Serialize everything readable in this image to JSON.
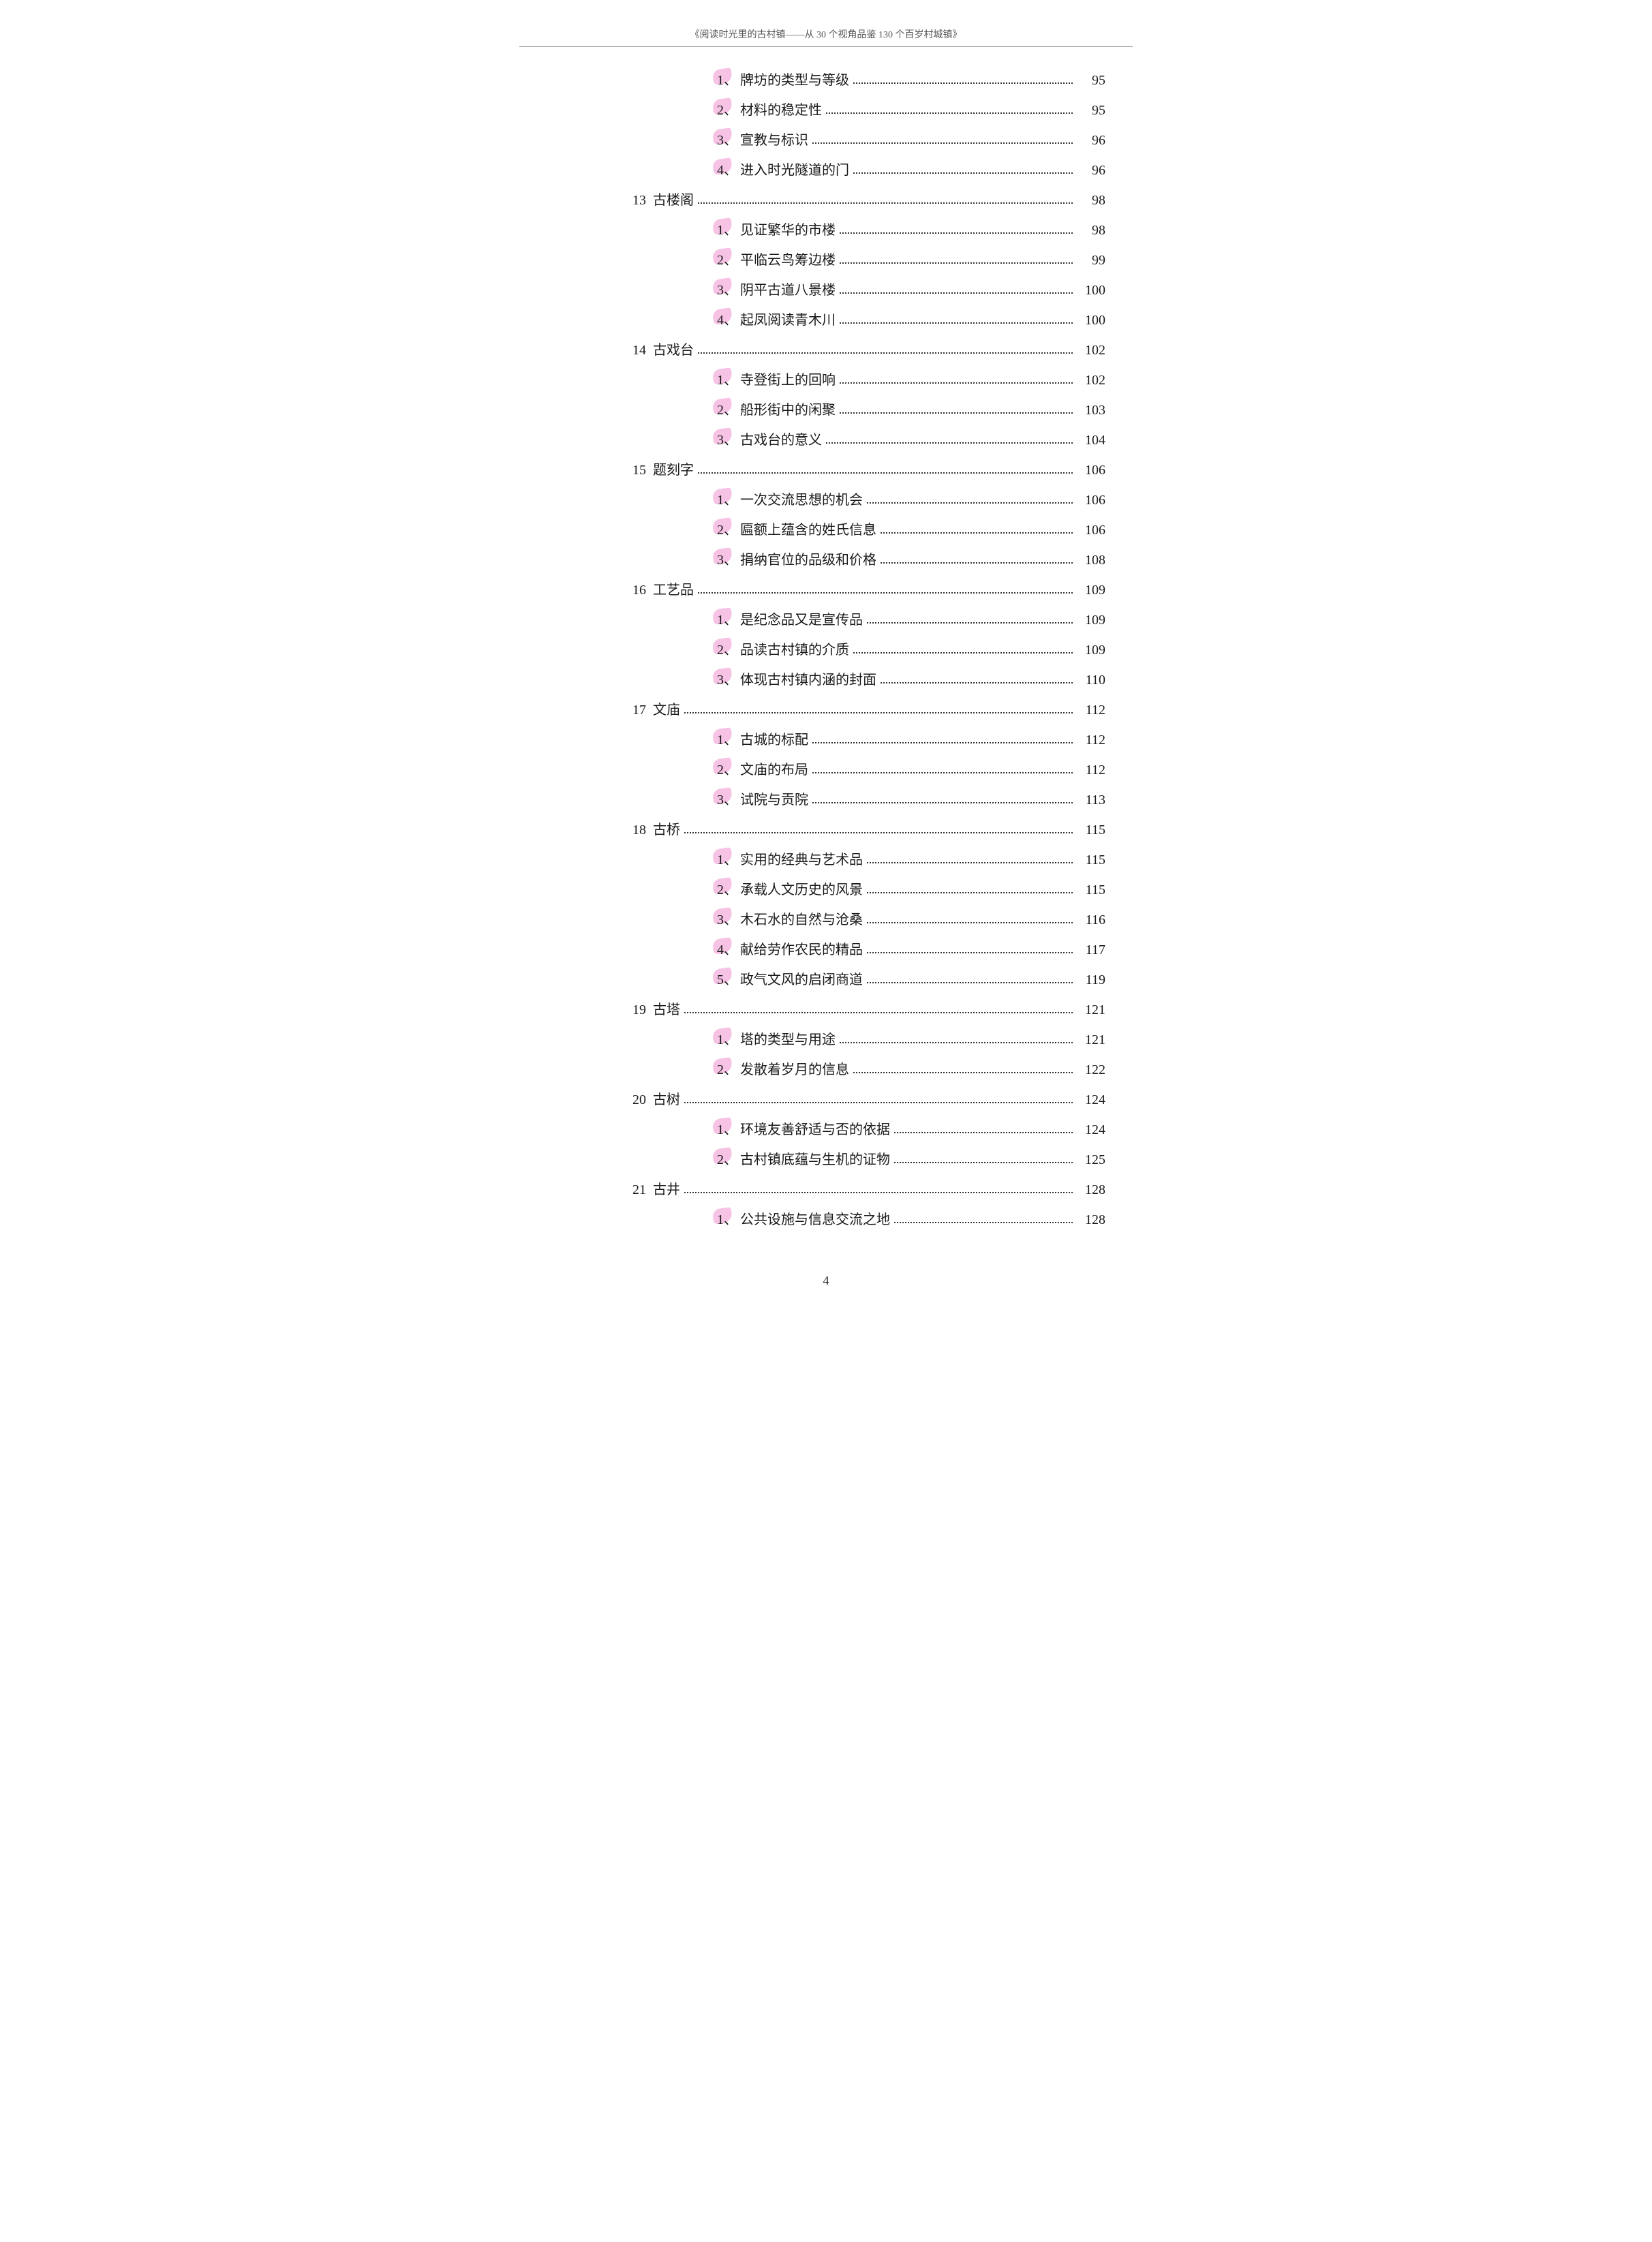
{
  "header": "《阅读时光里的古村镇——从 30 个视角品鉴 130 个百岁村城镇》",
  "page_number": "4",
  "font": {
    "body_size_pt": 15,
    "family": "SimSun"
  },
  "colors": {
    "text": "#1a1a1a",
    "dots": "#333333",
    "highlight": "#e754b4",
    "background": "#ffffff"
  },
  "toc": [
    {
      "type": "sub",
      "n": "1",
      "title": "牌坊的类型与等级",
      "pg": "95"
    },
    {
      "type": "sub",
      "n": "2",
      "title": "材料的稳定性",
      "pg": "95"
    },
    {
      "type": "sub",
      "n": "3",
      "title": "宣教与标识",
      "pg": "96"
    },
    {
      "type": "sub",
      "n": "4",
      "title": "进入时光隧道的门",
      "pg": "96"
    },
    {
      "type": "sec",
      "n": "13",
      "title": "古楼阁",
      "pg": "98"
    },
    {
      "type": "sub",
      "n": "1",
      "title": "见证繁华的市楼",
      "pg": "98"
    },
    {
      "type": "sub",
      "n": "2",
      "title": "平临云鸟筹边楼",
      "pg": "99"
    },
    {
      "type": "sub",
      "n": "3",
      "title": "阴平古道八景楼",
      "pg": "100"
    },
    {
      "type": "sub",
      "n": "4",
      "title": "起凤阅读青木川",
      "pg": "100"
    },
    {
      "type": "sec",
      "n": "14",
      "title": "古戏台",
      "pg": "102"
    },
    {
      "type": "sub",
      "n": "1",
      "title": "寺登街上的回响",
      "pg": "102"
    },
    {
      "type": "sub",
      "n": "2",
      "title": "船形街中的闲聚",
      "pg": "103"
    },
    {
      "type": "sub",
      "n": "3",
      "title": "古戏台的意义",
      "pg": "104"
    },
    {
      "type": "sec",
      "n": "15",
      "title": "题刻字",
      "pg": "106"
    },
    {
      "type": "sub",
      "n": "1",
      "title": "一次交流思想的机会",
      "pg": "106"
    },
    {
      "type": "sub",
      "n": "2",
      "title": "匾额上蕴含的姓氏信息",
      "pg": "106"
    },
    {
      "type": "sub",
      "n": "3",
      "title": "捐纳官位的品级和价格",
      "pg": "108"
    },
    {
      "type": "sec",
      "n": "16",
      "title": "工艺品",
      "pg": "109"
    },
    {
      "type": "sub",
      "n": "1",
      "title": "是纪念品又是宣传品",
      "pg": "109"
    },
    {
      "type": "sub",
      "n": "2",
      "title": "品读古村镇的介质",
      "pg": "109"
    },
    {
      "type": "sub",
      "n": "3",
      "title": "体现古村镇内涵的封面",
      "pg": "110"
    },
    {
      "type": "sec",
      "n": "17",
      "title": "文庙",
      "pg": "112"
    },
    {
      "type": "sub",
      "n": "1",
      "title": "古城的标配",
      "pg": "112"
    },
    {
      "type": "sub",
      "n": "2",
      "title": "文庙的布局",
      "pg": "112"
    },
    {
      "type": "sub",
      "n": "3",
      "title": "试院与贡院",
      "pg": "113"
    },
    {
      "type": "sec",
      "n": "18",
      "title": "古桥",
      "pg": "115"
    },
    {
      "type": "sub",
      "n": "1",
      "title": "实用的经典与艺术品",
      "pg": "115"
    },
    {
      "type": "sub",
      "n": "2",
      "title": "承载人文历史的风景",
      "pg": "115"
    },
    {
      "type": "sub",
      "n": "3",
      "title": "木石水的自然与沧桑",
      "pg": "116"
    },
    {
      "type": "sub",
      "n": "4",
      "title": "献给劳作农民的精品",
      "pg": "117"
    },
    {
      "type": "sub",
      "n": "5",
      "title": "政气文风的启闭商道",
      "pg": "119"
    },
    {
      "type": "sec",
      "n": "19",
      "title": "古塔",
      "pg": "121"
    },
    {
      "type": "sub",
      "n": "1",
      "title": "塔的类型与用途",
      "pg": "121"
    },
    {
      "type": "sub",
      "n": "2",
      "title": "发散着岁月的信息",
      "pg": "122"
    },
    {
      "type": "sec",
      "n": "20",
      "title": "古树",
      "pg": "124"
    },
    {
      "type": "sub",
      "n": "1",
      "title": "环境友善舒适与否的依据",
      "pg": "124"
    },
    {
      "type": "sub",
      "n": "2",
      "title": "古村镇底蕴与生机的证物",
      "pg": "125"
    },
    {
      "type": "sec",
      "n": "21",
      "title": "古井",
      "pg": "128"
    },
    {
      "type": "sub",
      "n": "1",
      "title": "公共设施与信息交流之地",
      "pg": "128"
    }
  ]
}
